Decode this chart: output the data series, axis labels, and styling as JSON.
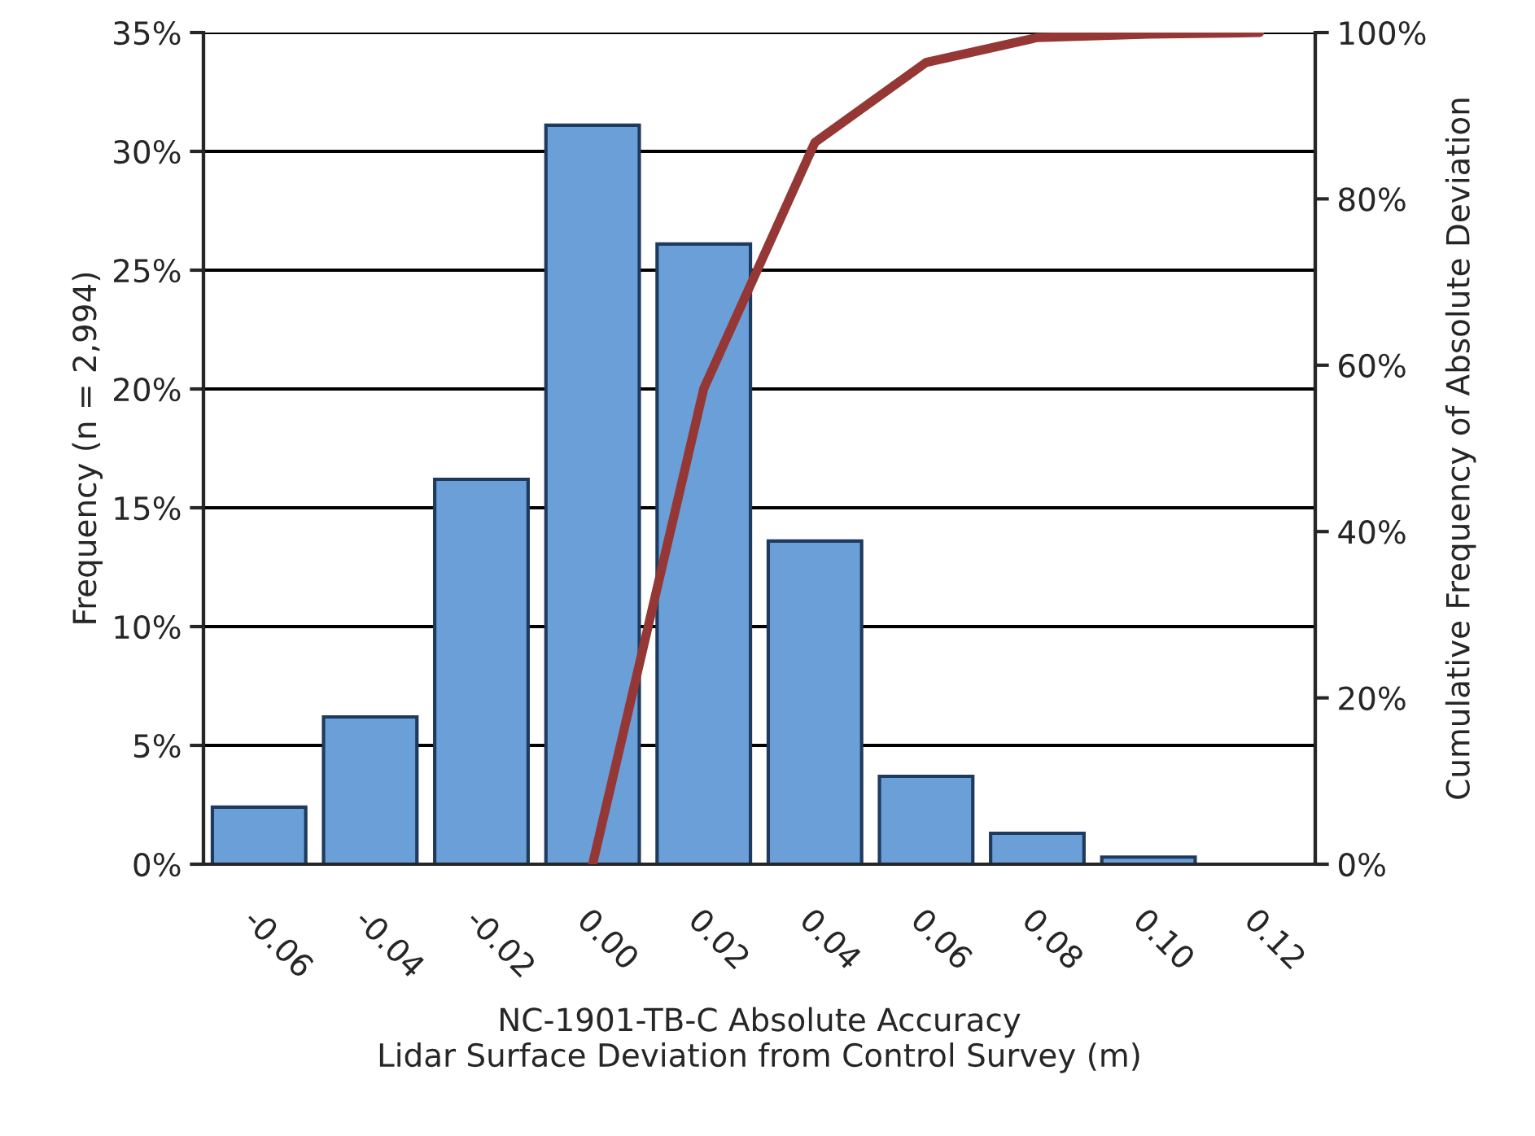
{
  "chart_data": {
    "type": "bar",
    "xlabel": "NC-1901-TB-C Absolute Accuracy\nLidar Surface Deviation from Control Survey (m)",
    "ylabel": "Frequency (n = 2,994)",
    "y2label": "Cumulative Frequency of Absolute Deviation",
    "categories": [
      "-0.06",
      "-0.04",
      "-0.02",
      "0.00",
      "0.02",
      "0.04",
      "0.06",
      "0.08",
      "0.10",
      "0.12"
    ],
    "series": [
      {
        "color": "#6a9fd8",
        "values": [
          2.4,
          6.2,
          16.2,
          31.1,
          26.1,
          13.6,
          3.7,
          1.3,
          0.3,
          null
        ]
      },
      {
        "type": "line",
        "axis": "y2",
        "color": "#953735",
        "values": [
          null,
          null,
          null,
          0,
          57.2,
          86.8,
          96.4,
          99.4,
          99.8,
          100
        ]
      }
    ],
    "ylim": [
      0,
      35
    ],
    "yticks": [
      {
        "value": 0,
        "label": "0%"
      },
      {
        "value": 5,
        "label": "5%"
      },
      {
        "value": 10,
        "label": "10%"
      },
      {
        "value": 15,
        "label": "15%"
      },
      {
        "value": 20,
        "label": "20%"
      },
      {
        "value": 25,
        "label": "25%"
      },
      {
        "value": 30,
        "label": "30%"
      },
      {
        "value": 35,
        "label": "35%"
      }
    ],
    "y2lim": [
      0,
      100
    ],
    "y2ticks": [
      {
        "value": 0,
        "label": "0%"
      },
      {
        "value": 20,
        "label": "20%"
      },
      {
        "value": 40,
        "label": "40%"
      },
      {
        "value": 60,
        "label": "60%"
      },
      {
        "value": 80,
        "label": "80%"
      },
      {
        "value": 100,
        "label": "100%"
      }
    ],
    "grid": "y",
    "marker": "none",
    "line_style": "solid"
  }
}
